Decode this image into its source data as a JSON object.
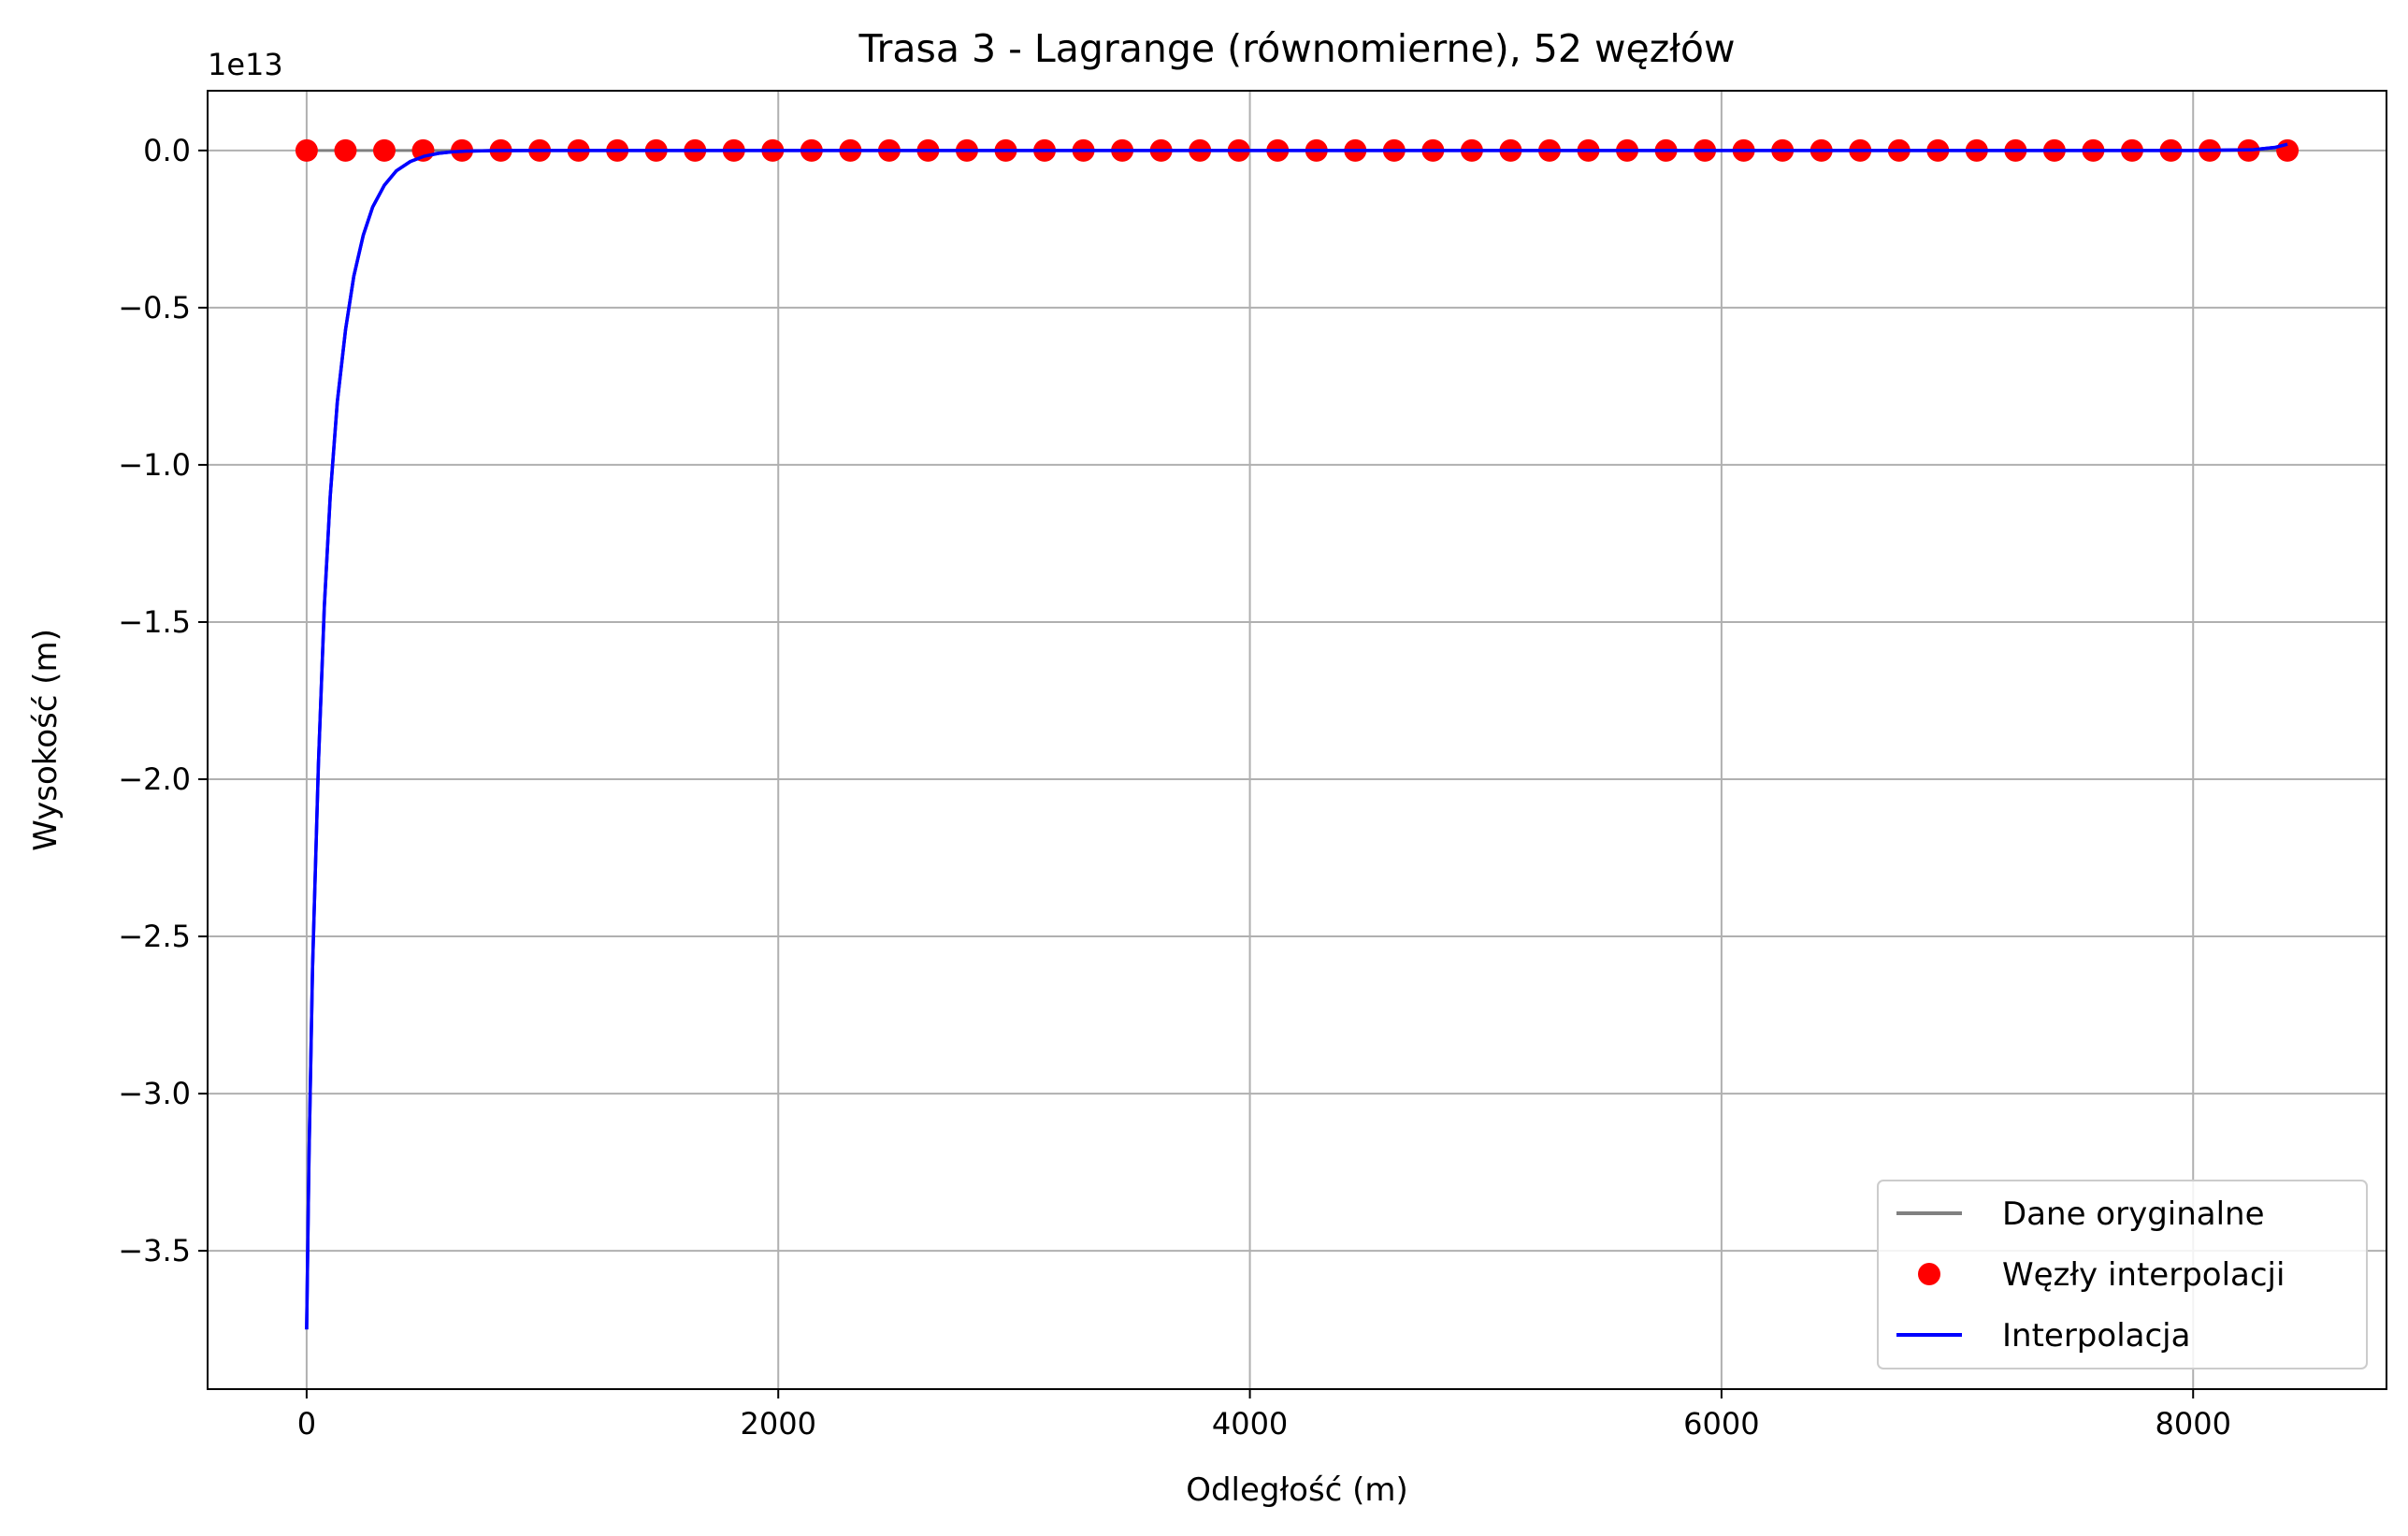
{
  "chart_data": {
    "type": "line",
    "title": "Trasa 3 - Lagrange (równomierne), 52 węzłów",
    "xlabel": "Odległość (m)",
    "ylabel": "Wysokość (m)",
    "offset_label": "1e13",
    "y_scale_factor": 10000000000000.0,
    "xlim": [
      -420,
      8820
    ],
    "ylim": [
      -3.94,
      0.19
    ],
    "x_ticks": [
      0,
      2000,
      4000,
      6000,
      8000
    ],
    "x_tick_labels": [
      "0",
      "2000",
      "4000",
      "6000",
      "8000"
    ],
    "y_ticks": [
      0.0,
      -0.5,
      -1.0,
      -1.5,
      -2.0,
      -2.5,
      -3.0,
      -3.5
    ],
    "y_tick_labels": [
      "0.0",
      "−0.5",
      "−1.0",
      "−1.5",
      "−2.0",
      "−2.5",
      "−3.0",
      "−3.5"
    ],
    "grid": true,
    "legend_position": "lower-right",
    "legend": [
      {
        "label": "Dane oryginalne",
        "color": "#808080",
        "marker": "line"
      },
      {
        "label": "Węzły interpolacji",
        "color": "#ff0000",
        "marker": "dot"
      },
      {
        "label": "Interpolacja",
        "color": "#0000ff",
        "marker": "line"
      }
    ],
    "series": [
      {
        "name": "Dane oryginalne",
        "color": "#808080",
        "x": [
          0,
          8400
        ],
        "y": [
          0,
          0
        ]
      },
      {
        "name": "Węzły interpolacji",
        "color": "#ff0000",
        "node_count": 52,
        "x_start": 0,
        "x_end": 8400,
        "y_all": 0
      },
      {
        "name": "Interpolacja",
        "color": "#0000ff",
        "x": [
          0,
          10,
          25,
          50,
          75,
          100,
          130,
          165,
          200,
          240,
          280,
          330,
          380,
          440,
          500,
          560,
          620,
          680,
          800,
          1000,
          2000,
          4000,
          6000,
          8000,
          8250,
          8350,
          8400
        ],
        "y": [
          -3.75,
          -3.2,
          -2.6,
          -1.95,
          -1.45,
          -1.1,
          -0.8,
          -0.57,
          -0.4,
          -0.27,
          -0.18,
          -0.11,
          -0.065,
          -0.035,
          -0.018,
          -0.009,
          -0.004,
          -0.002,
          -0.0005,
          0,
          0,
          0,
          0,
          0,
          0.002,
          0.01,
          0.02
        ]
      }
    ]
  }
}
